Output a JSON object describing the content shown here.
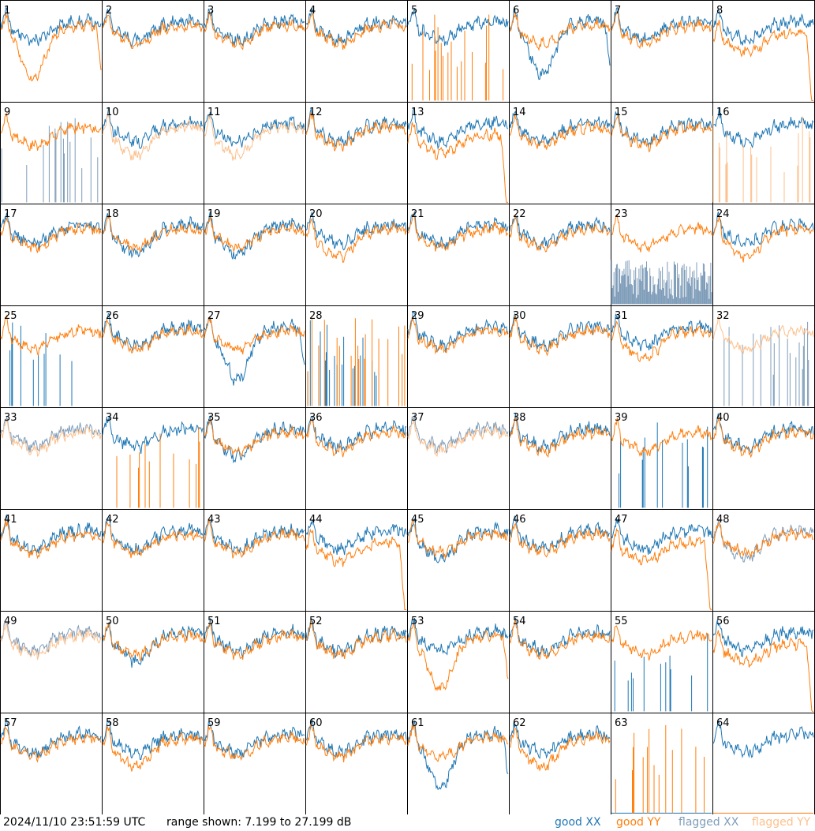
{
  "colors": {
    "good_xx": "#1f77b4",
    "good_yy": "#ff7f0e",
    "flagged_xx": "#7f9db9",
    "flagged_yy": "#fdc08c",
    "frame": "#000000"
  },
  "footer": {
    "timestamp": "2024/11/10 23:51:59 UTC",
    "range": "range shown: 7.199 to 27.199 dB"
  },
  "legend": [
    {
      "label": "good XX",
      "color": "#1f77b4"
    },
    {
      "label": "good YY",
      "color": "#ff7f0e"
    },
    {
      "label": "flagged XX",
      "color": "#7f9db9"
    },
    {
      "label": "flagged YY",
      "color": "#fdc08c"
    }
  ],
  "chart_data": {
    "type": "line",
    "layout": "8x8 small multiples",
    "x_units": "spectral channel (unlabeled)",
    "y_range_db": [
      7.199,
      27.199
    ],
    "grid": false,
    "series_names": [
      "good XX",
      "good YY",
      "flagged XX",
      "flagged YY"
    ],
    "panels": [
      {
        "id": "1",
        "xx": "good",
        "yy": "good",
        "shape_xx": "normal",
        "shape_yy": "sag"
      },
      {
        "id": "2",
        "xx": "good",
        "yy": "good",
        "shape_xx": "normal",
        "shape_yy": "normal"
      },
      {
        "id": "3",
        "xx": "good",
        "yy": "good",
        "shape_xx": "normal",
        "shape_yy": "normal"
      },
      {
        "id": "4",
        "xx": "good",
        "yy": "good",
        "shape_xx": "normal",
        "shape_yy": "normal"
      },
      {
        "id": "5",
        "xx": "good",
        "yy": "good",
        "shape_xx": "normal",
        "shape_yy": "spikes"
      },
      {
        "id": "6",
        "xx": "good",
        "yy": "good",
        "shape_xx": "sag",
        "shape_yy": "normal"
      },
      {
        "id": "7",
        "xx": "good",
        "yy": "good",
        "shape_xx": "normal",
        "shape_yy": "normal"
      },
      {
        "id": "8",
        "xx": "good",
        "yy": "good",
        "shape_xx": "normal",
        "shape_yy": "drop"
      },
      {
        "id": "9",
        "xx": "flagged",
        "yy": "good",
        "shape_xx": "spikes",
        "shape_yy": "normal"
      },
      {
        "id": "10",
        "xx": "good",
        "yy": "flagged",
        "shape_xx": "normal",
        "shape_yy": "low"
      },
      {
        "id": "11",
        "xx": "good",
        "yy": "flagged",
        "shape_xx": "normal",
        "shape_yy": "low"
      },
      {
        "id": "12",
        "xx": "good",
        "yy": "good",
        "shape_xx": "normal",
        "shape_yy": "normal"
      },
      {
        "id": "13",
        "xx": "good",
        "yy": "good",
        "shape_xx": "normal",
        "shape_yy": "drop"
      },
      {
        "id": "14",
        "xx": "good",
        "yy": "good",
        "shape_xx": "normal",
        "shape_yy": "normal"
      },
      {
        "id": "15",
        "xx": "good",
        "yy": "good",
        "shape_xx": "normal",
        "shape_yy": "normal"
      },
      {
        "id": "16",
        "xx": "good",
        "yy": "flagged",
        "shape_xx": "normal",
        "shape_yy": "spikes"
      },
      {
        "id": "17",
        "xx": "good",
        "yy": "good",
        "shape_xx": "normal",
        "shape_yy": "normal"
      },
      {
        "id": "18",
        "xx": "good",
        "yy": "good",
        "shape_xx": "low",
        "shape_yy": "normal"
      },
      {
        "id": "19",
        "xx": "good",
        "yy": "good",
        "shape_xx": "low",
        "shape_yy": "normal"
      },
      {
        "id": "20",
        "xx": "good",
        "yy": "good",
        "shape_xx": "normal",
        "shape_yy": "low"
      },
      {
        "id": "21",
        "xx": "good",
        "yy": "good",
        "shape_xx": "normal",
        "shape_yy": "normal"
      },
      {
        "id": "22",
        "xx": "good",
        "yy": "good",
        "shape_xx": "normal",
        "shape_yy": "normal"
      },
      {
        "id": "23",
        "xx": "flagged",
        "yy": "good",
        "shape_xx": "noisy",
        "shape_yy": "normal"
      },
      {
        "id": "24",
        "xx": "good",
        "yy": "good",
        "shape_xx": "normal",
        "shape_yy": "low"
      },
      {
        "id": "25",
        "xx": "good",
        "yy": "good",
        "shape_xx": "spikes",
        "shape_yy": "normal"
      },
      {
        "id": "26",
        "xx": "good",
        "yy": "good",
        "shape_xx": "normal",
        "shape_yy": "normal"
      },
      {
        "id": "27",
        "xx": "good",
        "yy": "good",
        "shape_xx": "sag",
        "shape_yy": "normal"
      },
      {
        "id": "28",
        "xx": "good",
        "yy": "good",
        "shape_xx": "spikes",
        "shape_yy": "spikes"
      },
      {
        "id": "29",
        "xx": "good",
        "yy": "good",
        "shape_xx": "normal",
        "shape_yy": "normal"
      },
      {
        "id": "30",
        "xx": "good",
        "yy": "good",
        "shape_xx": "normal",
        "shape_yy": "normal"
      },
      {
        "id": "31",
        "xx": "good",
        "yy": "good",
        "shape_xx": "normal",
        "shape_yy": "low"
      },
      {
        "id": "32",
        "xx": "flagged",
        "yy": "flagged",
        "shape_xx": "spikes",
        "shape_yy": "normal"
      },
      {
        "id": "33",
        "xx": "flagged",
        "yy": "flagged",
        "shape_xx": "normal",
        "shape_yy": "normal"
      },
      {
        "id": "34",
        "xx": "good",
        "yy": "good",
        "shape_xx": "normal",
        "shape_yy": "spikes"
      },
      {
        "id": "35",
        "xx": "good",
        "yy": "good",
        "shape_xx": "low",
        "shape_yy": "normal"
      },
      {
        "id": "36",
        "xx": "good",
        "yy": "good",
        "shape_xx": "normal",
        "shape_yy": "normal"
      },
      {
        "id": "37",
        "xx": "flagged",
        "yy": "flagged",
        "shape_xx": "normal",
        "shape_yy": "normal"
      },
      {
        "id": "38",
        "xx": "good",
        "yy": "good",
        "shape_xx": "normal",
        "shape_yy": "normal"
      },
      {
        "id": "39",
        "xx": "good",
        "yy": "good",
        "shape_xx": "spikes",
        "shape_yy": "normal"
      },
      {
        "id": "40",
        "xx": "good",
        "yy": "good",
        "shape_xx": "normal",
        "shape_yy": "normal"
      },
      {
        "id": "41",
        "xx": "good",
        "yy": "good",
        "shape_xx": "normal",
        "shape_yy": "normal"
      },
      {
        "id": "42",
        "xx": "good",
        "yy": "good",
        "shape_xx": "normal",
        "shape_yy": "normal"
      },
      {
        "id": "43",
        "xx": "good",
        "yy": "good",
        "shape_xx": "normal",
        "shape_yy": "normal"
      },
      {
        "id": "44",
        "xx": "good",
        "yy": "good",
        "shape_xx": "normal",
        "shape_yy": "drop"
      },
      {
        "id": "45",
        "xx": "good",
        "yy": "good",
        "shape_xx": "low",
        "shape_yy": "normal"
      },
      {
        "id": "46",
        "xx": "good",
        "yy": "good",
        "shape_xx": "normal",
        "shape_yy": "normal"
      },
      {
        "id": "47",
        "xx": "good",
        "yy": "good",
        "shape_xx": "normal",
        "shape_yy": "drop"
      },
      {
        "id": "48",
        "xx": "flagged",
        "yy": "good",
        "shape_xx": "low",
        "shape_yy": "normal"
      },
      {
        "id": "49",
        "xx": "flagged",
        "yy": "flagged",
        "shape_xx": "normal",
        "shape_yy": "normal"
      },
      {
        "id": "50",
        "xx": "good",
        "yy": "good",
        "shape_xx": "low",
        "shape_yy": "normal"
      },
      {
        "id": "51",
        "xx": "good",
        "yy": "good",
        "shape_xx": "normal",
        "shape_yy": "normal"
      },
      {
        "id": "52",
        "xx": "good",
        "yy": "good",
        "shape_xx": "normal",
        "shape_yy": "normal"
      },
      {
        "id": "53",
        "xx": "good",
        "yy": "good",
        "shape_xx": "normal",
        "shape_yy": "sag"
      },
      {
        "id": "54",
        "xx": "good",
        "yy": "good",
        "shape_xx": "normal",
        "shape_yy": "normal"
      },
      {
        "id": "55",
        "xx": "good",
        "yy": "good",
        "shape_xx": "spikes",
        "shape_yy": "normal"
      },
      {
        "id": "56",
        "xx": "good",
        "yy": "good",
        "shape_xx": "normal",
        "shape_yy": "drop"
      },
      {
        "id": "57",
        "xx": "good",
        "yy": "good",
        "shape_xx": "normal",
        "shape_yy": "normal"
      },
      {
        "id": "58",
        "xx": "good",
        "yy": "good",
        "shape_xx": "normal",
        "shape_yy": "low"
      },
      {
        "id": "59",
        "xx": "good",
        "yy": "good",
        "shape_xx": "normal",
        "shape_yy": "normal"
      },
      {
        "id": "60",
        "xx": "good",
        "yy": "good",
        "shape_xx": "normal",
        "shape_yy": "normal"
      },
      {
        "id": "61",
        "xx": "good",
        "yy": "good",
        "shape_xx": "sag",
        "shape_yy": "normal"
      },
      {
        "id": "62",
        "xx": "good",
        "yy": "good",
        "shape_xx": "normal",
        "shape_yy": "low"
      },
      {
        "id": "63",
        "xx": "good",
        "yy": "good",
        "shape_xx": "flat",
        "shape_yy": "spikes"
      },
      {
        "id": "64",
        "xx": "good",
        "yy": "good",
        "shape_xx": "normal",
        "shape_yy": "flat"
      }
    ]
  }
}
